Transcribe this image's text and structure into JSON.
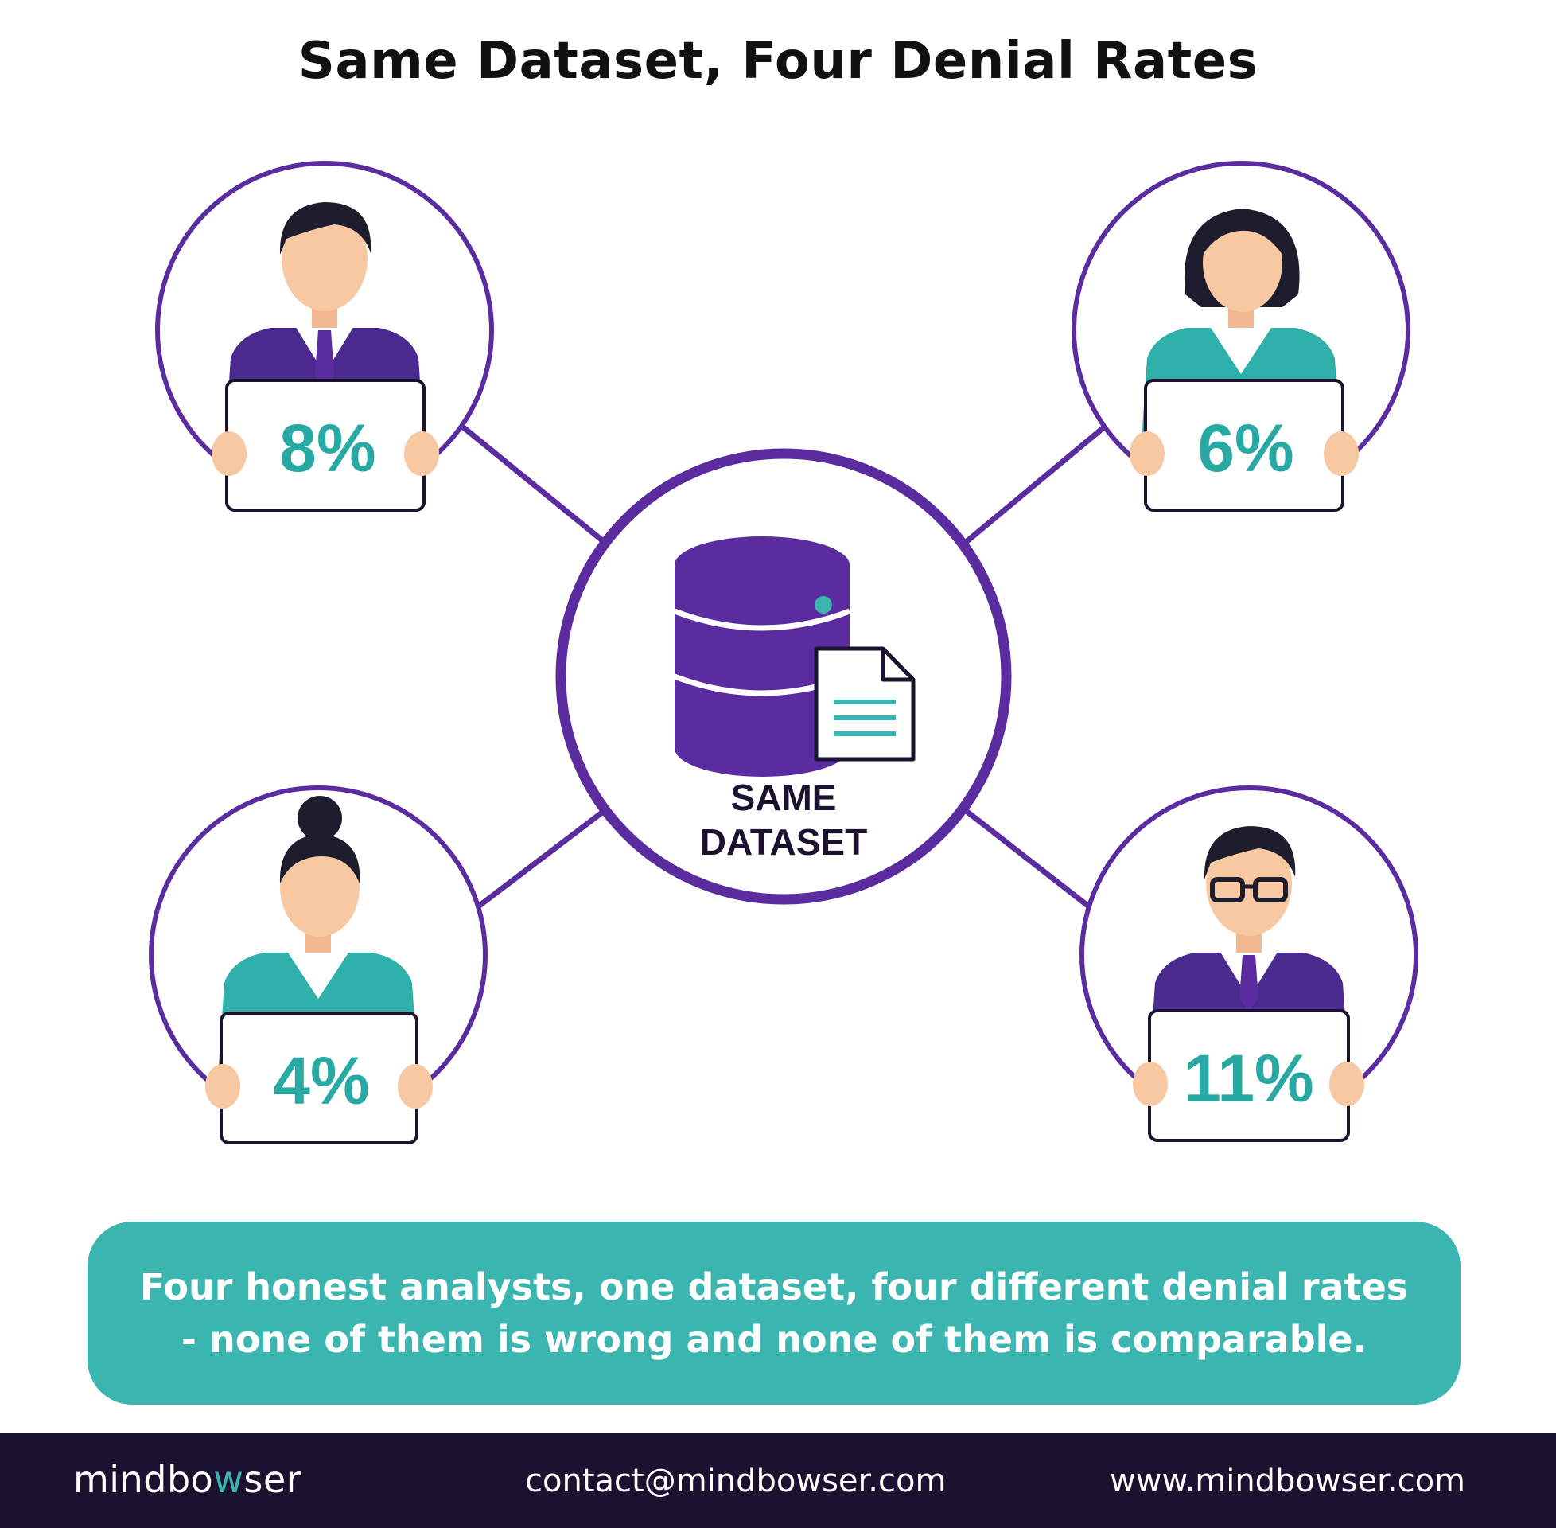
{
  "title": "Same Dataset, Four Denial Rates",
  "center": {
    "label_line1": "SAME",
    "label_line2": "DATASET",
    "icon": "database-icon"
  },
  "analysts": [
    {
      "id": "top-left",
      "rate": "8%",
      "figure": "man-in-suit",
      "outfit": "purple"
    },
    {
      "id": "top-right",
      "rate": "6%",
      "figure": "woman-short-hair",
      "outfit": "teal"
    },
    {
      "id": "bottom-left",
      "rate": "4%",
      "figure": "woman-bun-hair",
      "outfit": "teal"
    },
    {
      "id": "bottom-right",
      "rate": "11%",
      "figure": "man-with-glasses",
      "outfit": "purple"
    }
  ],
  "callout": {
    "line1": "Four honest analysts, one dataset, four different denial rates",
    "line2": "- none of them is wrong and none of them is comparable."
  },
  "footer": {
    "brand_part1": "mindbo",
    "brand_accent": "w",
    "brand_part2": "ser",
    "email": "contact@mindbowser.com",
    "website": "www.mindbowser.com"
  },
  "colors": {
    "purple": "#5b2ca0",
    "teal": "#3ab5b0",
    "navy": "#1b1230"
  }
}
